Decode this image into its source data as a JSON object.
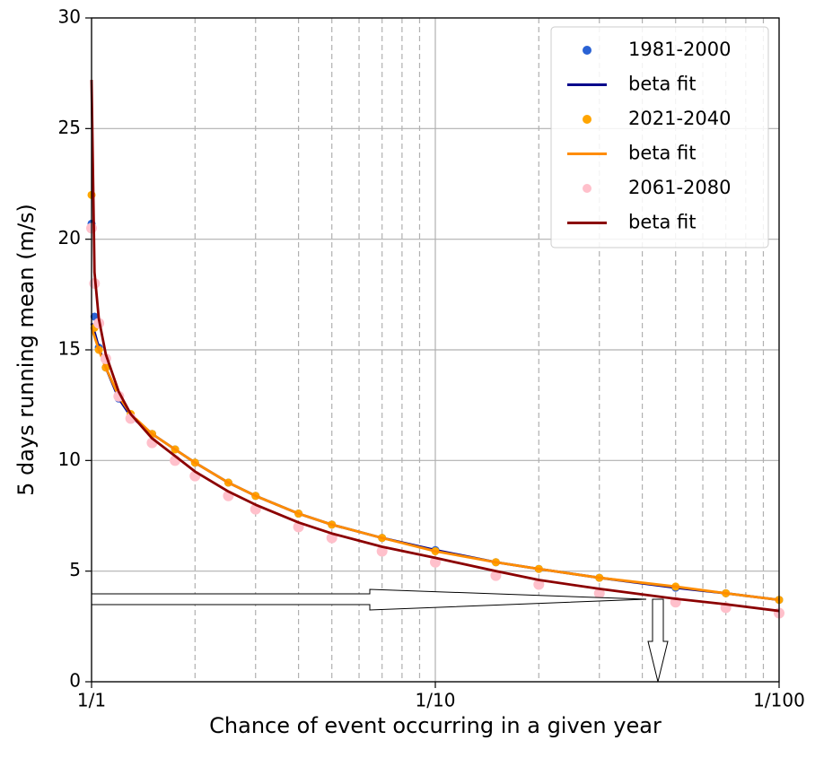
{
  "chart_data": {
    "type": "line",
    "x_label": "Chance of event occurring in a given year",
    "y_label": "5 days running mean (m/s)",
    "x_log": true,
    "xlim": [
      1,
      100
    ],
    "xticks": [
      {
        "value": 1,
        "label": "1/1"
      },
      {
        "value": 10,
        "label": "1/10"
      },
      {
        "value": 100,
        "label": "1/100"
      }
    ],
    "xminor": [
      2,
      3,
      4,
      5,
      6,
      7,
      8,
      9,
      20,
      30,
      40,
      50,
      60,
      70,
      80,
      90
    ],
    "ylim": [
      0,
      30
    ],
    "yticks": [
      0,
      5,
      10,
      15,
      20,
      25,
      30
    ],
    "grid": true,
    "legend": "upper right",
    "x": [
      1.0,
      1.02,
      1.05,
      1.1,
      1.2,
      1.3,
      1.5,
      1.75,
      2,
      2.5,
      3,
      4,
      5,
      7,
      10,
      15,
      20,
      30,
      50,
      70,
      100
    ],
    "series": [
      {
        "name": "1981-2000",
        "type": "scatter",
        "color": "#2a62d4",
        "values": [
          20.7,
          16.5,
          15.1,
          14.2,
          12.8,
          12.0,
          11.2,
          10.5,
          9.9,
          9.0,
          8.4,
          7.6,
          7.1,
          6.5,
          5.95,
          5.4,
          5.1,
          4.7,
          4.25,
          4.0,
          3.7
        ]
      },
      {
        "name": "beta fit",
        "type": "line",
        "color": "#00008b",
        "values": [
          16.2,
          15.8,
          15.1,
          14.2,
          12.8,
          12.0,
          11.2,
          10.5,
          9.9,
          9.0,
          8.4,
          7.6,
          7.1,
          6.5,
          5.95,
          5.4,
          5.1,
          4.7,
          4.25,
          4.0,
          3.7
        ]
      },
      {
        "name": "2021-2040",
        "type": "scatter",
        "color": "#ffa500",
        "values": [
          22.0,
          16.0,
          15.0,
          14.2,
          12.9,
          12.1,
          11.2,
          10.5,
          9.9,
          9.0,
          8.4,
          7.6,
          7.1,
          6.5,
          5.9,
          5.4,
          5.1,
          4.7,
          4.3,
          4.0,
          3.7
        ]
      },
      {
        "name": "beta fit",
        "type": "line",
        "color": "#ff8c00",
        "values": [
          16.0,
          15.6,
          15.0,
          14.2,
          12.9,
          12.1,
          11.2,
          10.5,
          9.9,
          9.0,
          8.4,
          7.6,
          7.1,
          6.5,
          5.9,
          5.4,
          5.1,
          4.7,
          4.3,
          4.0,
          3.7
        ]
      },
      {
        "name": "2061-2080",
        "type": "scatter",
        "color": "#ffc0cb",
        "values": [
          20.5,
          18.0,
          16.2,
          14.6,
          12.9,
          11.9,
          10.8,
          10.0,
          9.3,
          8.4,
          7.8,
          7.0,
          6.5,
          5.9,
          5.4,
          4.8,
          4.4,
          4.0,
          3.6,
          3.35,
          3.1
        ]
      },
      {
        "name": "beta fit",
        "type": "line",
        "color": "#8b0000",
        "values": [
          27.2,
          18.5,
          16.4,
          14.8,
          13.1,
          12.1,
          11.0,
          10.2,
          9.5,
          8.6,
          8.0,
          7.2,
          6.7,
          6.1,
          5.6,
          5.0,
          4.6,
          4.2,
          3.75,
          3.5,
          3.2
        ]
      }
    ]
  }
}
